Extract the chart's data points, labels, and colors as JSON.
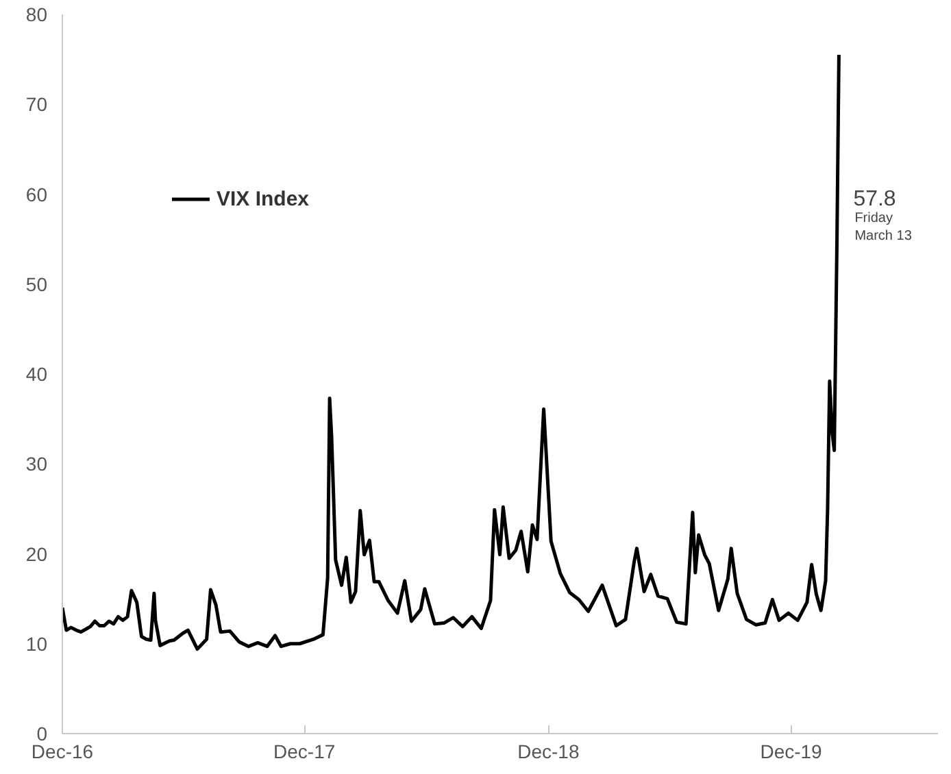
{
  "chart_data": {
    "type": "line",
    "xlim": [
      "2016-12-30",
      "2020-08-08"
    ],
    "ylim": [
      0,
      80
    ],
    "yticks": [
      0,
      10,
      20,
      30,
      40,
      50,
      60,
      70,
      80
    ],
    "xticks": [
      {
        "value": "2016-12-30",
        "label": "Dec-16"
      },
      {
        "value": "2017-12-29",
        "label": "Dec-17"
      },
      {
        "value": "2018-12-31",
        "label": "Dec-18"
      },
      {
        "value": "2019-12-31",
        "label": "Dec-19"
      }
    ],
    "grid": false,
    "legend": "top left",
    "marker": "none",
    "line_style": "solid",
    "annotations": [
      {
        "text": "57.8",
        "x": "2020-03-13",
        "y": 57.8
      },
      "Friday March 13"
    ],
    "series": [
      {
        "name": "VIX Index",
        "color": "#000000",
        "x": [
          "2016-12-30",
          "2017-01-05",
          "2017-01-12",
          "2017-01-20",
          "2017-01-27",
          "2017-02-03",
          "2017-02-10",
          "2017-02-17",
          "2017-02-24",
          "2017-03-03",
          "2017-03-10",
          "2017-03-17",
          "2017-03-24",
          "2017-03-31",
          "2017-04-07",
          "2017-04-13",
          "2017-04-21",
          "2017-04-28",
          "2017-05-05",
          "2017-05-12",
          "2017-05-17",
          "2017-05-19",
          "2017-05-26",
          "2017-06-09",
          "2017-06-16",
          "2017-06-30",
          "2017-07-07",
          "2017-07-21",
          "2017-08-04",
          "2017-08-10",
          "2017-08-18",
          "2017-08-25",
          "2017-09-08",
          "2017-09-22",
          "2017-10-06",
          "2017-10-20",
          "2017-11-03",
          "2017-11-15",
          "2017-11-24",
          "2017-12-08",
          "2017-12-22",
          "2018-01-12",
          "2018-01-26",
          "2018-02-02",
          "2018-02-05",
          "2018-02-08",
          "2018-02-14",
          "2018-02-23",
          "2018-03-02",
          "2018-03-09",
          "2018-03-16",
          "2018-03-23",
          "2018-03-29",
          "2018-04-06",
          "2018-04-13",
          "2018-04-20",
          "2018-05-04",
          "2018-05-18",
          "2018-05-29",
          "2018-06-08",
          "2018-06-22",
          "2018-06-28",
          "2018-07-13",
          "2018-07-27",
          "2018-08-10",
          "2018-08-24",
          "2018-09-07",
          "2018-09-21",
          "2018-10-05",
          "2018-10-11",
          "2018-10-19",
          "2018-10-24",
          "2018-11-02",
          "2018-11-12",
          "2018-11-20",
          "2018-11-30",
          "2018-12-07",
          "2018-12-14",
          "2018-12-24",
          "2019-01-04",
          "2019-01-18",
          "2019-02-01",
          "2019-02-15",
          "2019-03-01",
          "2019-03-22",
          "2019-04-12",
          "2019-04-26",
          "2019-05-09",
          "2019-05-13",
          "2019-05-24",
          "2019-06-03",
          "2019-06-14",
          "2019-06-28",
          "2019-07-12",
          "2019-07-26",
          "2019-08-05",
          "2019-08-09",
          "2019-08-14",
          "2019-08-23",
          "2019-08-30",
          "2019-09-13",
          "2019-09-27",
          "2019-10-02",
          "2019-10-11",
          "2019-10-25",
          "2019-11-08",
          "2019-11-22",
          "2019-12-03",
          "2019-12-13",
          "2019-12-27",
          "2020-01-10",
          "2020-01-24",
          "2020-01-31",
          "2020-02-07",
          "2020-02-14",
          "2020-02-21",
          "2020-02-24",
          "2020-02-27",
          "2020-03-02",
          "2020-03-05",
          "2020-03-09",
          "2020-03-12"
        ],
        "values": [
          14,
          11.5,
          11.8,
          11.5,
          11.3,
          11.6,
          11.9,
          12.5,
          12,
          12,
          12.5,
          12.2,
          13,
          12.6,
          13,
          15.9,
          14.6,
          10.8,
          10.5,
          10.4,
          15.6,
          12.6,
          9.8,
          10.3,
          10.4,
          11.2,
          11.5,
          9.4,
          10.5,
          16,
          14.3,
          11.3,
          11.4,
          10.2,
          9.7,
          10.1,
          9.7,
          10.9,
          9.7,
          10,
          10,
          10.5,
          11,
          17.3,
          37.3,
          33,
          19.3,
          16.5,
          19.6,
          14.6,
          15.8,
          24.8,
          19.9,
          21.5,
          16.9,
          16.9,
          14.8,
          13.4,
          17,
          12.5,
          13.8,
          16.1,
          12.2,
          12.3,
          12.9,
          11.9,
          13,
          11.7,
          14.8,
          24.9,
          19.9,
          25.2,
          19.5,
          20.4,
          22.5,
          18,
          23.2,
          21.6,
          36.1,
          21.4,
          17.8,
          15.7,
          14.9,
          13.6,
          16.5,
          12,
          12.7,
          19.1,
          20.6,
          15.8,
          17.7,
          15.3,
          15,
          12.4,
          12.2,
          24.6,
          17.9,
          22.1,
          19.9,
          18.9,
          13.7,
          17.2,
          20.6,
          15.6,
          12.7,
          12.1,
          12.3,
          14.9,
          12.6,
          13.4,
          12.6,
          14.6,
          18.8,
          15.5,
          13.7,
          17,
          25,
          39.2,
          33.4,
          31.5,
          54.5,
          75.5
        ]
      }
    ]
  }
}
